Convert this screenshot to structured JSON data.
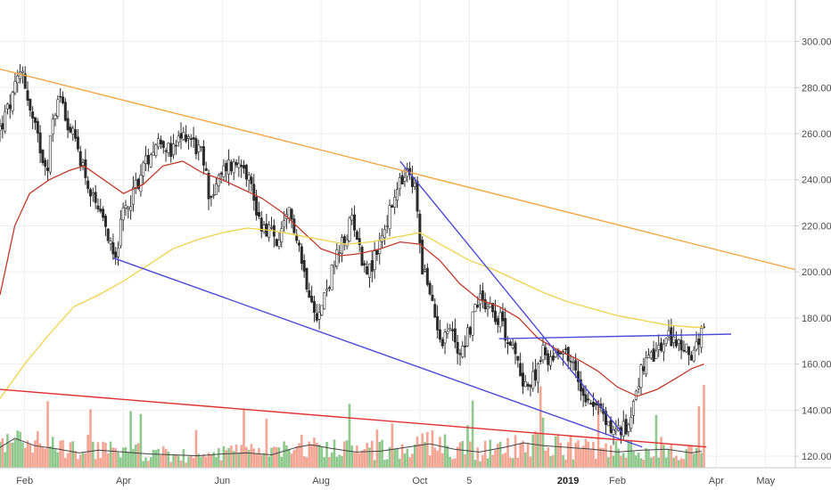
{
  "chart_data": {
    "type": "candlestick",
    "y_axis": {
      "ticks": [
        "300.00",
        "280.00",
        "260.00",
        "240.00",
        "220.00",
        "200.00",
        "180.00",
        "160.00",
        "140.00",
        "120.00"
      ],
      "tick_values": [
        300,
        280,
        260,
        240,
        220,
        200,
        180,
        160,
        140,
        120
      ],
      "range": [
        115,
        318
      ],
      "position": "right"
    },
    "x_axis": {
      "ticks": [
        {
          "label": "Feb",
          "month": 0.5,
          "bold": false
        },
        {
          "label": "Apr",
          "month": 2.5,
          "bold": false
        },
        {
          "label": "Jun",
          "month": 4.5,
          "bold": false
        },
        {
          "label": "Aug",
          "month": 6.5,
          "bold": false
        },
        {
          "label": "Oct",
          "month": 8.5,
          "bold": false
        },
        {
          "label": "5",
          "month": 9.5,
          "bold": false
        },
        {
          "label": "2019",
          "month": 11.5,
          "bold": true
        },
        {
          "label": "Feb",
          "month": 12.5,
          "bold": false
        },
        {
          "label": "Apr",
          "month": 14.5,
          "bold": false
        },
        {
          "label": "May",
          "month": 15.5,
          "bold": false
        }
      ],
      "range": [
        0,
        16.1
      ]
    },
    "grid": true,
    "price_path": [
      [
        0.0,
        262
      ],
      [
        0.25,
        275
      ],
      [
        0.45,
        289
      ],
      [
        0.6,
        270
      ],
      [
        0.8,
        255
      ],
      [
        0.95,
        245
      ],
      [
        1.1,
        270
      ],
      [
        1.25,
        277
      ],
      [
        1.4,
        262
      ],
      [
        1.55,
        255
      ],
      [
        1.7,
        245
      ],
      [
        1.85,
        232
      ],
      [
        2.05,
        222
      ],
      [
        2.25,
        213
      ],
      [
        2.35,
        209
      ],
      [
        2.5,
        225
      ],
      [
        2.7,
        235
      ],
      [
        2.9,
        245
      ],
      [
        3.1,
        255
      ],
      [
        3.3,
        258
      ],
      [
        3.45,
        250
      ],
      [
        3.6,
        256
      ],
      [
        3.8,
        261
      ],
      [
        3.95,
        255
      ],
      [
        4.1,
        250
      ],
      [
        4.25,
        232
      ],
      [
        4.45,
        240
      ],
      [
        4.6,
        247
      ],
      [
        4.75,
        246
      ],
      [
        4.9,
        250
      ],
      [
        5.05,
        240
      ],
      [
        5.25,
        222
      ],
      [
        5.45,
        218
      ],
      [
        5.65,
        212
      ],
      [
        5.85,
        225
      ],
      [
        6.0,
        218
      ],
      [
        6.15,
        200
      ],
      [
        6.35,
        187
      ],
      [
        6.45,
        180
      ],
      [
        6.6,
        192
      ],
      [
        6.8,
        205
      ],
      [
        7.0,
        215
      ],
      [
        7.15,
        225
      ],
      [
        7.3,
        207
      ],
      [
        7.5,
        200
      ],
      [
        7.7,
        214
      ],
      [
        7.9,
        226
      ],
      [
        8.1,
        238
      ],
      [
        8.25,
        242
      ],
      [
        8.4,
        236
      ],
      [
        8.55,
        203
      ],
      [
        8.75,
        185
      ],
      [
        8.95,
        171
      ],
      [
        9.1,
        176
      ],
      [
        9.3,
        165
      ],
      [
        9.5,
        175
      ],
      [
        9.7,
        190
      ],
      [
        9.95,
        185
      ],
      [
        10.15,
        178
      ],
      [
        10.35,
        168
      ],
      [
        10.55,
        155
      ],
      [
        10.75,
        150
      ],
      [
        10.95,
        165
      ],
      [
        11.15,
        162
      ],
      [
        11.35,
        168
      ],
      [
        11.55,
        162
      ],
      [
        11.75,
        150
      ],
      [
        11.95,
        145
      ],
      [
        12.15,
        140
      ],
      [
        12.35,
        132
      ],
      [
        12.55,
        131
      ],
      [
        12.7,
        132
      ],
      [
        12.85,
        148
      ],
      [
        13.0,
        158
      ],
      [
        13.2,
        162
      ],
      [
        13.4,
        168
      ],
      [
        13.6,
        172
      ],
      [
        13.75,
        168
      ],
      [
        13.9,
        165
      ],
      [
        14.05,
        166
      ],
      [
        14.15,
        168
      ],
      [
        14.25,
        176
      ]
    ],
    "moving_averages": [
      {
        "color": "#c0392b",
        "points": [
          [
            0.0,
            190
          ],
          [
            0.3,
            220
          ],
          [
            0.6,
            234
          ],
          [
            1.0,
            240
          ],
          [
            1.4,
            244
          ],
          [
            1.7,
            246
          ],
          [
            2.1,
            240
          ],
          [
            2.5,
            234
          ],
          [
            2.9,
            238
          ],
          [
            3.3,
            246
          ],
          [
            3.7,
            248
          ],
          [
            4.1,
            243
          ],
          [
            4.5,
            240
          ],
          [
            4.9,
            236
          ],
          [
            5.3,
            232
          ],
          [
            5.7,
            226
          ],
          [
            6.1,
            218
          ],
          [
            6.5,
            210
          ],
          [
            6.9,
            207
          ],
          [
            7.3,
            208
          ],
          [
            7.7,
            210
          ],
          [
            8.1,
            213
          ],
          [
            8.5,
            212
          ],
          [
            8.9,
            205
          ],
          [
            9.3,
            195
          ],
          [
            9.7,
            188
          ],
          [
            10.1,
            185
          ],
          [
            10.5,
            180
          ],
          [
            10.9,
            171
          ],
          [
            11.3,
            166
          ],
          [
            11.7,
            162
          ],
          [
            12.1,
            157
          ],
          [
            12.5,
            150
          ],
          [
            12.9,
            146
          ],
          [
            13.3,
            149
          ],
          [
            13.7,
            154
          ],
          [
            14.0,
            158
          ],
          [
            14.25,
            160
          ]
        ]
      },
      {
        "color": "#f0d24a",
        "points": [
          [
            0.0,
            145
          ],
          [
            0.5,
            160
          ],
          [
            1.0,
            173
          ],
          [
            1.5,
            185
          ],
          [
            2.0,
            190
          ],
          [
            2.5,
            196
          ],
          [
            3.0,
            203
          ],
          [
            3.5,
            210
          ],
          [
            4.0,
            214
          ],
          [
            4.5,
            217
          ],
          [
            5.0,
            219
          ],
          [
            5.5,
            218
          ],
          [
            6.0,
            216
          ],
          [
            6.5,
            214
          ],
          [
            7.0,
            212
          ],
          [
            7.5,
            213
          ],
          [
            8.0,
            215
          ],
          [
            8.5,
            217
          ],
          [
            9.0,
            211
          ],
          [
            9.5,
            205
          ],
          [
            10.0,
            201
          ],
          [
            10.5,
            196
          ],
          [
            11.0,
            191
          ],
          [
            11.5,
            187
          ],
          [
            12.0,
            184
          ],
          [
            12.5,
            181
          ],
          [
            13.0,
            179
          ],
          [
            13.5,
            177
          ],
          [
            14.0,
            176
          ],
          [
            14.25,
            176
          ]
        ]
      }
    ],
    "trendlines": [
      {
        "color": "#f5a742",
        "from": [
          0.0,
          288
        ],
        "to": [
          16.1,
          201
        ]
      },
      {
        "color": "#4a4ad6",
        "from": [
          2.3,
          206
        ],
        "to": [
          13.0,
          124
        ]
      },
      {
        "color": "#4a4ad6",
        "from": [
          8.1,
          248
        ],
        "to": [
          12.6,
          130
        ]
      },
      {
        "color": "#4a4ad6",
        "from": [
          10.1,
          171
        ],
        "to": [
          14.8,
          173
        ]
      },
      {
        "color": "#e03030",
        "from": [
          0.0,
          149
        ],
        "to": [
          14.3,
          124
        ]
      }
    ],
    "volume": {
      "base": 115,
      "max_height": 40,
      "colors": {
        "up": "#8dc98d",
        "down": "#f4a493"
      },
      "avg_color": "#444444",
      "avg_path": [
        [
          0.0,
          0.22
        ],
        [
          0.3,
          0.32
        ],
        [
          0.7,
          0.24
        ],
        [
          1.2,
          0.2
        ],
        [
          1.6,
          0.16
        ],
        [
          2.0,
          0.19
        ],
        [
          2.5,
          0.17
        ],
        [
          3.0,
          0.15
        ],
        [
          3.5,
          0.14
        ],
        [
          4.0,
          0.13
        ],
        [
          4.5,
          0.15
        ],
        [
          5.0,
          0.16
        ],
        [
          5.5,
          0.14
        ],
        [
          6.0,
          0.22
        ],
        [
          6.3,
          0.25
        ],
        [
          6.7,
          0.21
        ],
        [
          7.2,
          0.17
        ],
        [
          7.7,
          0.18
        ],
        [
          8.2,
          0.22
        ],
        [
          8.7,
          0.26
        ],
        [
          9.2,
          0.2
        ],
        [
          9.7,
          0.17
        ],
        [
          10.2,
          0.22
        ],
        [
          10.6,
          0.27
        ],
        [
          11.0,
          0.24
        ],
        [
          11.5,
          0.22
        ],
        [
          12.0,
          0.2
        ],
        [
          12.5,
          0.17
        ],
        [
          13.0,
          0.19
        ],
        [
          13.5,
          0.2
        ],
        [
          14.0,
          0.16
        ],
        [
          14.2,
          0.18
        ]
      ],
      "last_bar": 0.9
    }
  }
}
